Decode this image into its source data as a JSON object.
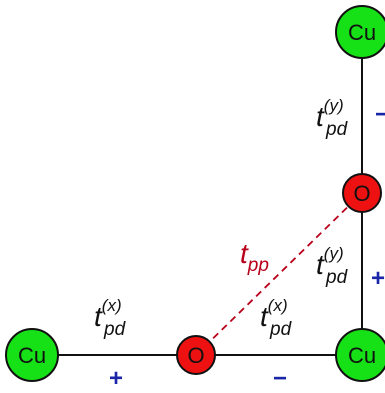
{
  "colors": {
    "cu_fill": "#16e016",
    "o_fill": "#ee1111",
    "bond": "#111111",
    "pp_line": "#b8001a",
    "sign": "#1a26a8"
  },
  "atoms": {
    "cu_top": "Cu",
    "cu_left": "Cu",
    "cu_corner": "Cu",
    "o_right": "O",
    "o_bottom": "O"
  },
  "hoppings": {
    "t_symbol": "t",
    "pd_sub": "pd",
    "pp_sub": "pp",
    "x_sup": "(x)",
    "y_sup": "(y)"
  },
  "signs": {
    "top_right": "−",
    "mid_right": "+",
    "left_bond": "+",
    "bottom_right": "−"
  }
}
